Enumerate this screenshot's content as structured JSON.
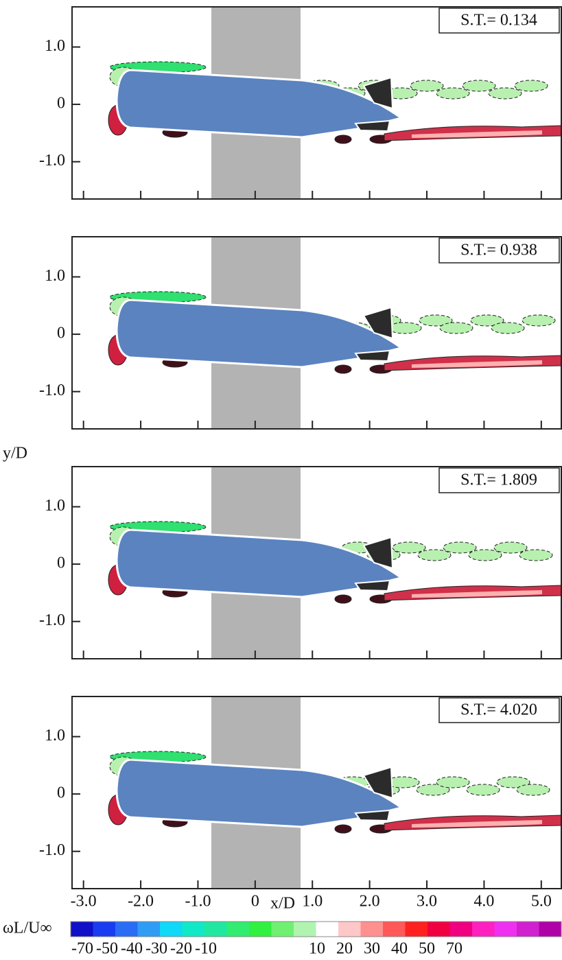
{
  "chart_data": [
    {
      "type": "contour",
      "annotation": "S.T.= 0.134",
      "xlim": [
        -3.2,
        5.35
      ],
      "ylim": [
        -1.65,
        1.7
      ],
      "xticks": [
        -3,
        -2,
        -1,
        0,
        1,
        2,
        3,
        4,
        5
      ],
      "yticks": [
        {
          "value": 1,
          "label": "1.0"
        },
        0,
        {
          "value": -1,
          "label": "-1.0"
        }
      ]
    },
    {
      "type": "contour",
      "annotation": "S.T.= 0.938",
      "xlim": [
        -3.2,
        5.35
      ],
      "ylim": [
        -1.65,
        1.7
      ],
      "xticks": [
        -3,
        -2,
        -1,
        0,
        1,
        2,
        3,
        4,
        5
      ],
      "yticks": [
        {
          "value": 1,
          "label": "1.0"
        },
        0,
        {
          "value": -1,
          "label": "-1.0"
        }
      ]
    },
    {
      "type": "contour",
      "annotation": "S.T.= 1.809",
      "xlim": [
        -3.2,
        5.35
      ],
      "ylim": [
        -1.65,
        1.7
      ],
      "xticks": [
        -3,
        -2,
        -1,
        0,
        1,
        2,
        3,
        4,
        5
      ],
      "yticks": [
        {
          "value": 1,
          "label": "1.0"
        },
        0,
        {
          "value": -1,
          "label": "-1.0"
        }
      ]
    },
    {
      "type": "contour",
      "annotation": "S.T.= 4.020",
      "xlim": [
        -3.2,
        5.35
      ],
      "ylim": [
        -1.65,
        1.7
      ],
      "xticks": [
        {
          "value": -3,
          "label": "-3.0"
        },
        {
          "value": -2,
          "label": "-2.0"
        },
        {
          "value": -1,
          "label": "-1.0"
        },
        0,
        {
          "value": 1,
          "label": "1.0"
        },
        {
          "value": 2,
          "label": "2.0"
        },
        {
          "value": 3,
          "label": "3.0"
        },
        {
          "value": 4,
          "label": "4.0"
        },
        {
          "value": 5,
          "label": "5.0"
        }
      ],
      "yticks": [
        {
          "value": 1,
          "label": "1.0"
        },
        0,
        {
          "value": -1,
          "label": "-1.0"
        }
      ]
    }
  ],
  "axes": {
    "x_label": "x/D",
    "y_label": "y/D"
  },
  "colorbar": {
    "label": "ωL/U∞",
    "ticks": [
      -70,
      -50,
      -40,
      -30,
      -20,
      -10,
      10,
      20,
      30,
      40,
      50,
      70
    ],
    "colors": [
      "#1010c8",
      "#1a3cf0",
      "#2a6cf5",
      "#2f9cf5",
      "#10d8f8",
      "#10e8c8",
      "#20e8a0",
      "#30ec70",
      "#30f040",
      "#70f070",
      "#b0f4b0",
      "#ffffff",
      "#ffc8c8",
      "#ff9090",
      "#ff5858",
      "#ff2020",
      "#f00040",
      "#f00080",
      "#ff20c0",
      "#f030f0",
      "#d020d0",
      "#b000a8"
    ]
  }
}
